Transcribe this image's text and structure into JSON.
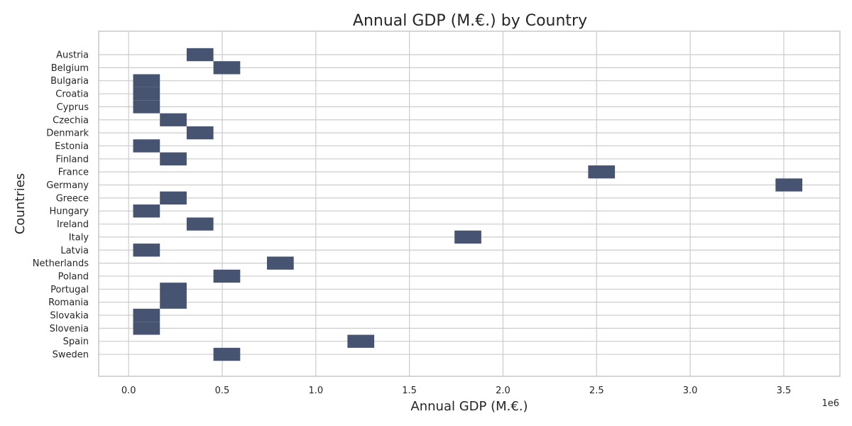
{
  "chart_data": {
    "type": "bar",
    "orientation": "horizontal",
    "title": "Annual GDP (M.€.) by Country",
    "xlabel": "Annual GDP (M.€.)",
    "ylabel": "Countries",
    "x_offset_label": "1e6",
    "x_ticks": [
      0.0,
      0.5,
      1.0,
      1.5,
      2.0,
      2.5,
      3.0,
      3.5
    ],
    "x_tick_labels": [
      "0.0",
      "0.5",
      "1.0",
      "1.5",
      "2.0",
      "2.5",
      "3.0",
      "3.5"
    ],
    "xlim": [
      -160000,
      3800000
    ],
    "grid": true,
    "bar_color": "#465371",
    "categories": [
      "Austria",
      "Belgium",
      "Bulgaria",
      "Croatia",
      "Cyprus",
      "Czechia",
      "Denmark",
      "Estonia",
      "Finland",
      "France",
      "Germany",
      "Greece",
      "Hungary",
      "Ireland",
      "Italy",
      "Latvia",
      "Netherlands",
      "Poland",
      "Portugal",
      "Romania",
      "Slovakia",
      "Slovenia",
      "Spain",
      "Sweden"
    ],
    "bins": [
      [
        310000,
        453000
      ],
      [
        453000,
        596000
      ],
      [
        24000,
        167000
      ],
      [
        24000,
        167000
      ],
      [
        24000,
        167000
      ],
      [
        167000,
        310000
      ],
      [
        310000,
        453000
      ],
      [
        24000,
        167000
      ],
      [
        167000,
        310000
      ],
      [
        2455000,
        2598000
      ],
      [
        3456000,
        3599000
      ],
      [
        167000,
        310000
      ],
      [
        24000,
        167000
      ],
      [
        310000,
        453000
      ],
      [
        1741000,
        1884000
      ],
      [
        24000,
        167000
      ],
      [
        739000,
        882000
      ],
      [
        453000,
        596000
      ],
      [
        167000,
        310000
      ],
      [
        167000,
        310000
      ],
      [
        24000,
        167000
      ],
      [
        24000,
        167000
      ],
      [
        1169000,
        1312000
      ],
      [
        453000,
        596000
      ]
    ]
  }
}
